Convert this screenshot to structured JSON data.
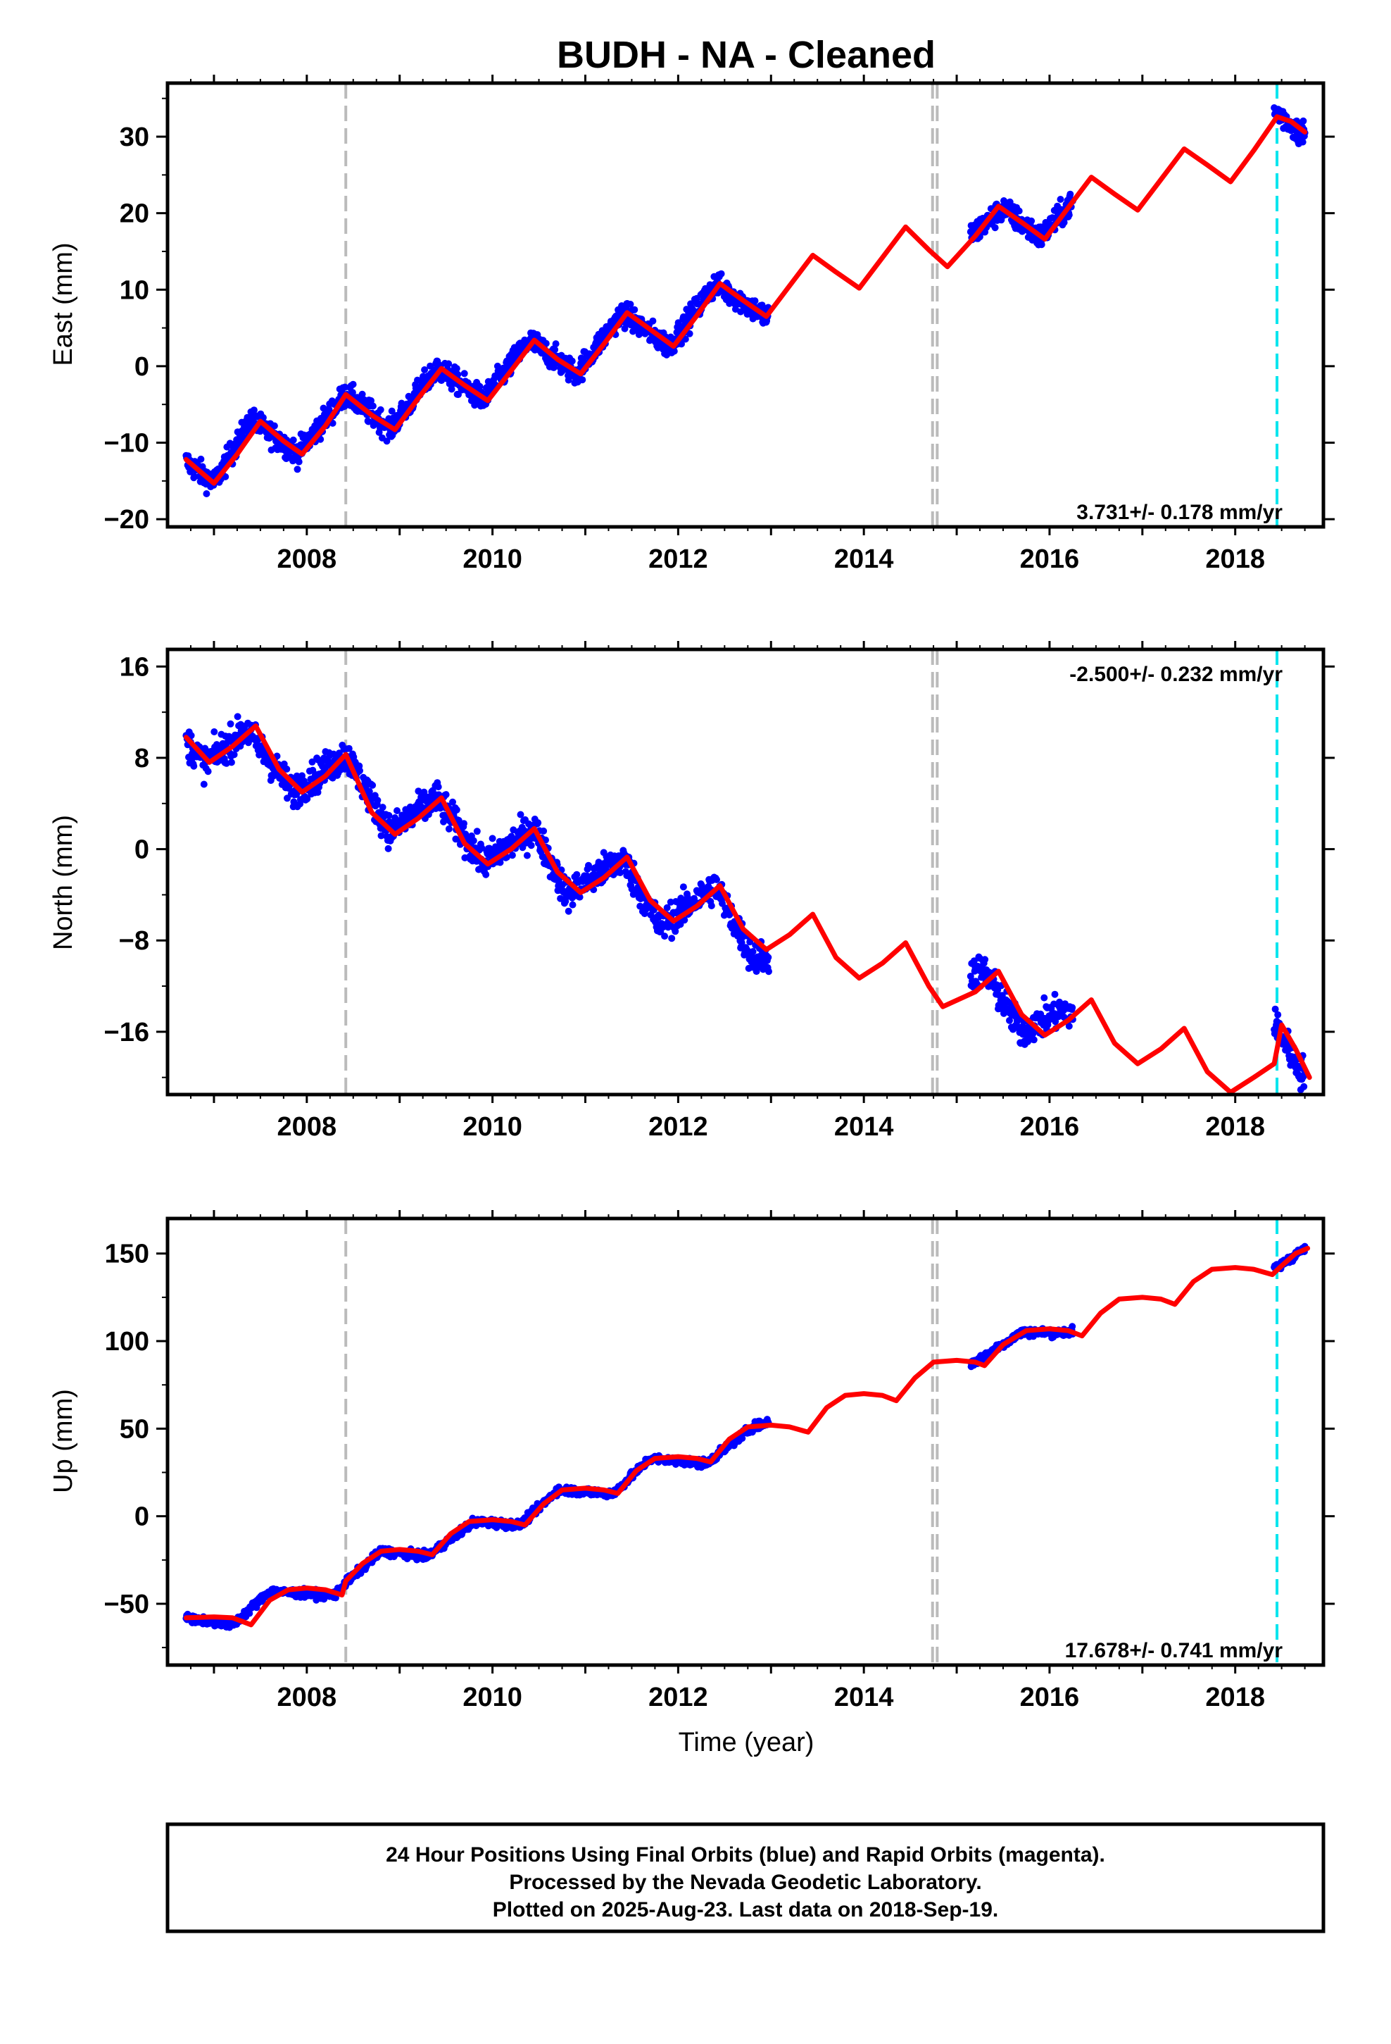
{
  "title": "BUDH  - NA - Cleaned",
  "xlabel": "Time (year)",
  "footer": {
    "lines": [
      "24 Hour Positions Using Final Orbits (blue) and Rapid Orbits (magenta).",
      "Processed by the Nevada Geodetic Laboratory.",
      "Plotted on 2025-Aug-23. Last data on 2018-Sep-19."
    ]
  },
  "colors": {
    "data_points": "#0000ff",
    "model": "#ff0000",
    "equipment_change": "#bbbbbb",
    "earthquake_event": "#00e5ee",
    "frame": "#000000"
  },
  "events": {
    "gray_dashed": [
      2008.42,
      2014.74,
      2014.79
    ],
    "cyan_dashed": [
      2018.45
    ]
  },
  "chart_data": [
    {
      "type": "scatter",
      "ylabel": "East (mm)",
      "rate_label": "3.731+/- 0.178 mm/yr",
      "rate": 3.731,
      "amplitude": 2.8,
      "xlim": [
        2006.5,
        2018.95
      ],
      "ylim": [
        -21,
        37
      ],
      "yticks": [
        -20,
        -10,
        0,
        10,
        20,
        30
      ],
      "xticks": [
        2008,
        2010,
        2012,
        2014,
        2016,
        2018
      ],
      "series": [
        {
          "values": [
            [
              2006.7,
              -12.5
            ],
            [
              2007.0,
              -15.3
            ],
            [
              2007.4,
              -7.0
            ],
            [
              2007.9,
              -11.4
            ],
            [
              2008.42,
              -3.6
            ],
            [
              2008.9,
              -8.2
            ],
            [
              2009.4,
              -0.2
            ],
            [
              2009.9,
              -4.4
            ],
            [
              2010.4,
              3.4
            ],
            [
              2010.9,
              -1.0
            ],
            [
              2011.4,
              7.0
            ],
            [
              2011.9,
              2.6
            ],
            [
              2012.4,
              10.8
            ],
            [
              2012.95,
              6.4
            ],
            [
              2015.2,
              17.5
            ],
            [
              2015.5,
              20.6
            ],
            [
              2015.9,
              16.8
            ],
            [
              2016.25,
              21.5
            ],
            [
              2018.45,
              33.2
            ],
            [
              2018.7,
              30.5
            ]
          ]
        }
      ],
      "model": [
        [
          2006.7,
          -12.2
        ],
        [
          2007.0,
          -15.3
        ],
        [
          2007.25,
          -11.5
        ],
        [
          2007.5,
          -7.2
        ],
        [
          2007.75,
          -9.8
        ],
        [
          2007.95,
          -11.5
        ],
        [
          2008.2,
          -7.8
        ],
        [
          2008.42,
          -3.7
        ],
        [
          2008.7,
          -6.4
        ],
        [
          2008.95,
          -8.3
        ],
        [
          2009.2,
          -4.2
        ],
        [
          2009.45,
          -0.3
        ],
        [
          2009.7,
          -2.5
        ],
        [
          2009.95,
          -4.5
        ],
        [
          2010.2,
          -0.6
        ],
        [
          2010.45,
          3.4
        ],
        [
          2010.7,
          0.9
        ],
        [
          2010.95,
          -1.0
        ],
        [
          2011.2,
          2.9
        ],
        [
          2011.45,
          7.0
        ],
        [
          2011.7,
          4.8
        ],
        [
          2011.95,
          2.6
        ],
        [
          2012.2,
          6.6
        ],
        [
          2012.45,
          10.8
        ],
        [
          2012.7,
          8.6
        ],
        [
          2012.95,
          6.5
        ],
        [
          2013.2,
          10.5
        ],
        [
          2013.45,
          14.5
        ],
        [
          2013.7,
          12.3
        ],
        [
          2013.95,
          10.2
        ],
        [
          2014.2,
          14.2
        ],
        [
          2014.45,
          18.2
        ],
        [
          2014.7,
          15.2
        ],
        [
          2014.9,
          13.0
        ],
        [
          2015.2,
          17.0
        ],
        [
          2015.45,
          20.9
        ],
        [
          2015.7,
          18.8
        ],
        [
          2015.95,
          16.6
        ],
        [
          2016.2,
          20.7
        ],
        [
          2016.45,
          24.7
        ],
        [
          2016.7,
          22.5
        ],
        [
          2016.95,
          20.4
        ],
        [
          2017.2,
          24.4
        ],
        [
          2017.45,
          28.4
        ],
        [
          2017.7,
          26.3
        ],
        [
          2017.95,
          24.1
        ],
        [
          2018.2,
          28.2
        ],
        [
          2018.45,
          32.6
        ],
        [
          2018.6,
          32.0
        ],
        [
          2018.75,
          30.6
        ]
      ]
    },
    {
      "type": "scatter",
      "ylabel": "North (mm)",
      "rate_label": "-2.500+/- 0.232 mm/yr",
      "rate": -2.5,
      "amplitude": 2.5,
      "xlim": [
        2006.5,
        2018.95
      ],
      "ylim": [
        -21.5,
        17.5
      ],
      "yticks": [
        -16,
        -8,
        0,
        8,
        16
      ],
      "xticks": [
        2008,
        2010,
        2012,
        2014,
        2016,
        2018
      ],
      "series": [
        {
          "values": [
            [
              2006.7,
              9.5
            ],
            [
              2006.9,
              7.5
            ],
            [
              2007.35,
              10.5
            ],
            [
              2007.85,
              5.0
            ],
            [
              2008.42,
              8.3
            ],
            [
              2008.9,
              1.5
            ],
            [
              2009.4,
              4.5
            ],
            [
              2009.9,
              -1.2
            ],
            [
              2010.45,
              1.8
            ],
            [
              2010.8,
              -4.0
            ],
            [
              2011.4,
              -0.8
            ],
            [
              2011.8,
              -6.8
            ],
            [
              2012.4,
              -3.2
            ],
            [
              2012.8,
              -9.5
            ],
            [
              2015.3,
              -10.8
            ],
            [
              2015.7,
              -16.0
            ],
            [
              2016.1,
              -14.2
            ],
            [
              2018.45,
              -15.5
            ],
            [
              2018.7,
              -19.5
            ]
          ]
        }
      ],
      "model": [
        [
          2006.7,
          9.8
        ],
        [
          2006.95,
          7.6
        ],
        [
          2007.2,
          9.0
        ],
        [
          2007.45,
          10.8
        ],
        [
          2007.7,
          7.0
        ],
        [
          2007.95,
          5.0
        ],
        [
          2008.2,
          6.4
        ],
        [
          2008.42,
          8.3
        ],
        [
          2008.7,
          3.2
        ],
        [
          2008.95,
          1.3
        ],
        [
          2009.2,
          2.7
        ],
        [
          2009.45,
          4.5
        ],
        [
          2009.7,
          0.5
        ],
        [
          2009.95,
          -1.3
        ],
        [
          2010.2,
          0.0
        ],
        [
          2010.45,
          1.8
        ],
        [
          2010.7,
          -2.0
        ],
        [
          2010.95,
          -3.8
        ],
        [
          2011.2,
          -2.5
        ],
        [
          2011.45,
          -0.7
        ],
        [
          2011.7,
          -4.5
        ],
        [
          2011.95,
          -6.3
        ],
        [
          2012.2,
          -5.0
        ],
        [
          2012.45,
          -3.2
        ],
        [
          2012.7,
          -7.0
        ],
        [
          2012.95,
          -8.8
        ],
        [
          2013.2,
          -7.5
        ],
        [
          2013.45,
          -5.7
        ],
        [
          2013.7,
          -9.5
        ],
        [
          2013.95,
          -11.3
        ],
        [
          2014.2,
          -10.0
        ],
        [
          2014.45,
          -8.2
        ],
        [
          2014.7,
          -12.0
        ],
        [
          2014.85,
          -13.8
        ],
        [
          2015.2,
          -12.5
        ],
        [
          2015.45,
          -10.7
        ],
        [
          2015.7,
          -14.5
        ],
        [
          2015.95,
          -16.3
        ],
        [
          2016.2,
          -15.0
        ],
        [
          2016.45,
          -13.2
        ],
        [
          2016.7,
          -17.0
        ],
        [
          2016.95,
          -18.8
        ],
        [
          2017.2,
          -17.5
        ],
        [
          2017.45,
          -15.7
        ],
        [
          2017.7,
          -19.5
        ],
        [
          2017.95,
          -21.3
        ],
        [
          2018.2,
          -20.0
        ],
        [
          2018.42,
          -18.8
        ],
        [
          2018.5,
          -15.4
        ],
        [
          2018.65,
          -17.5
        ],
        [
          2018.8,
          -20.0
        ]
      ]
    },
    {
      "type": "scatter",
      "ylabel": "Up (mm)",
      "rate_label": "17.678+/- 0.741 mm/yr",
      "rate": 17.678,
      "amplitude": 4.0,
      "xlim": [
        2006.5,
        2018.95
      ],
      "ylim": [
        -85,
        170
      ],
      "yticks": [
        -50,
        0,
        50,
        100,
        150
      ],
      "xticks": [
        2008,
        2010,
        2012,
        2014,
        2016,
        2018
      ],
      "series": [
        {
          "values": [
            [
              2006.7,
              -58
            ],
            [
              2007.2,
              -62
            ],
            [
              2007.6,
              -43
            ],
            [
              2008.3,
              -45
            ],
            [
              2008.42,
              -38
            ],
            [
              2008.8,
              -20
            ],
            [
              2009.3,
              -23
            ],
            [
              2009.8,
              -3
            ],
            [
              2010.3,
              -5
            ],
            [
              2010.7,
              15
            ],
            [
              2011.3,
              13
            ],
            [
              2011.7,
              33
            ],
            [
              2012.3,
              30
            ],
            [
              2012.8,
              51
            ],
            [
              2015.2,
              88
            ],
            [
              2015.7,
              105
            ],
            [
              2016.2,
              105
            ],
            [
              2018.45,
              142
            ],
            [
              2018.75,
              153
            ]
          ]
        }
      ],
      "model": [
        [
          2006.7,
          -58
        ],
        [
          2007.0,
          -57.5
        ],
        [
          2007.2,
          -58
        ],
        [
          2007.4,
          -62
        ],
        [
          2007.6,
          -48
        ],
        [
          2007.8,
          -42
        ],
        [
          2008.0,
          -41
        ],
        [
          2008.2,
          -42
        ],
        [
          2008.38,
          -45
        ],
        [
          2008.42,
          -37
        ],
        [
          2008.6,
          -27
        ],
        [
          2008.8,
          -20
        ],
        [
          2009.0,
          -19
        ],
        [
          2009.2,
          -20
        ],
        [
          2009.35,
          -22
        ],
        [
          2009.55,
          -10
        ],
        [
          2009.75,
          -3
        ],
        [
          2010.0,
          -2
        ],
        [
          2010.2,
          -3
        ],
        [
          2010.35,
          -5
        ],
        [
          2010.55,
          7
        ],
        [
          2010.75,
          15
        ],
        [
          2011.0,
          16
        ],
        [
          2011.2,
          15
        ],
        [
          2011.35,
          13
        ],
        [
          2011.55,
          26
        ],
        [
          2011.75,
          33
        ],
        [
          2012.0,
          34
        ],
        [
          2012.2,
          33
        ],
        [
          2012.35,
          31
        ],
        [
          2012.55,
          44
        ],
        [
          2012.75,
          51
        ],
        [
          2013.0,
          52
        ],
        [
          2013.2,
          51
        ],
        [
          2013.4,
          48
        ],
        [
          2013.6,
          62
        ],
        [
          2013.8,
          69
        ],
        [
          2014.0,
          70
        ],
        [
          2014.2,
          69
        ],
        [
          2014.35,
          66
        ],
        [
          2014.55,
          79
        ],
        [
          2014.75,
          88
        ],
        [
          2015.0,
          89
        ],
        [
          2015.2,
          88
        ],
        [
          2015.3,
          86
        ],
        [
          2015.5,
          98
        ],
        [
          2015.75,
          106
        ],
        [
          2016.0,
          107
        ],
        [
          2016.2,
          106
        ],
        [
          2016.35,
          103
        ],
        [
          2016.55,
          116
        ],
        [
          2016.75,
          124
        ],
        [
          2017.0,
          125
        ],
        [
          2017.2,
          124
        ],
        [
          2017.35,
          121
        ],
        [
          2017.55,
          134
        ],
        [
          2017.75,
          141
        ],
        [
          2018.0,
          142
        ],
        [
          2018.2,
          141
        ],
        [
          2018.4,
          138
        ],
        [
          2018.5,
          143
        ],
        [
          2018.65,
          150
        ],
        [
          2018.78,
          153
        ]
      ]
    }
  ]
}
